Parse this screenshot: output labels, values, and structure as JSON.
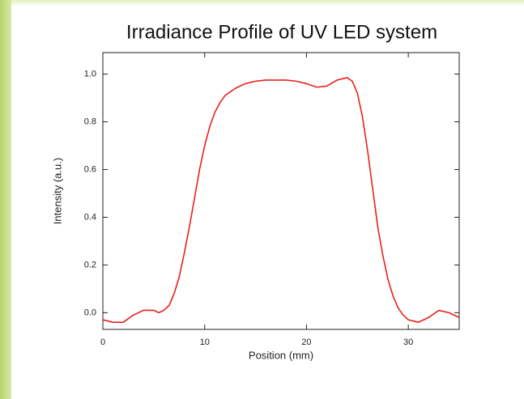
{
  "chart_data": {
    "type": "line",
    "title": "Irradiance Profile  of UV LED system",
    "xlabel": "Position (mm)",
    "ylabel": "Intensity (a.u.)",
    "color": "#e8201e",
    "x": [
      0,
      1,
      2,
      3,
      4,
      5,
      5.5,
      6,
      6.5,
      7,
      7.5,
      8,
      8.5,
      9,
      9.5,
      10,
      10.5,
      11,
      11.5,
      12,
      13,
      14,
      15,
      16,
      17,
      18,
      19,
      20,
      21,
      22,
      23,
      24,
      24.5,
      25,
      25.5,
      26,
      26.5,
      27,
      27.5,
      28,
      28.5,
      29,
      29.5,
      30,
      31,
      32,
      33,
      34,
      35
    ],
    "values": [
      -0.03,
      -0.04,
      -0.04,
      -0.01,
      0.01,
      0.01,
      0.0,
      0.01,
      0.03,
      0.08,
      0.15,
      0.25,
      0.36,
      0.48,
      0.6,
      0.7,
      0.78,
      0.84,
      0.88,
      0.91,
      0.94,
      0.96,
      0.97,
      0.975,
      0.975,
      0.975,
      0.97,
      0.96,
      0.945,
      0.95,
      0.975,
      0.985,
      0.97,
      0.92,
      0.82,
      0.68,
      0.52,
      0.36,
      0.24,
      0.14,
      0.07,
      0.02,
      -0.01,
      -0.03,
      -0.04,
      -0.02,
      0.01,
      0.0,
      -0.02
    ],
    "xlim": [
      0,
      35
    ],
    "ylim": [
      -0.07,
      1.09
    ],
    "xticks": [
      0,
      10,
      20,
      30
    ],
    "yticks": [
      {
        "value": 0,
        "label": "0.0"
      },
      0.2,
      0.4,
      0.6,
      0.8,
      {
        "value": 1,
        "label": "1.0"
      }
    ]
  }
}
